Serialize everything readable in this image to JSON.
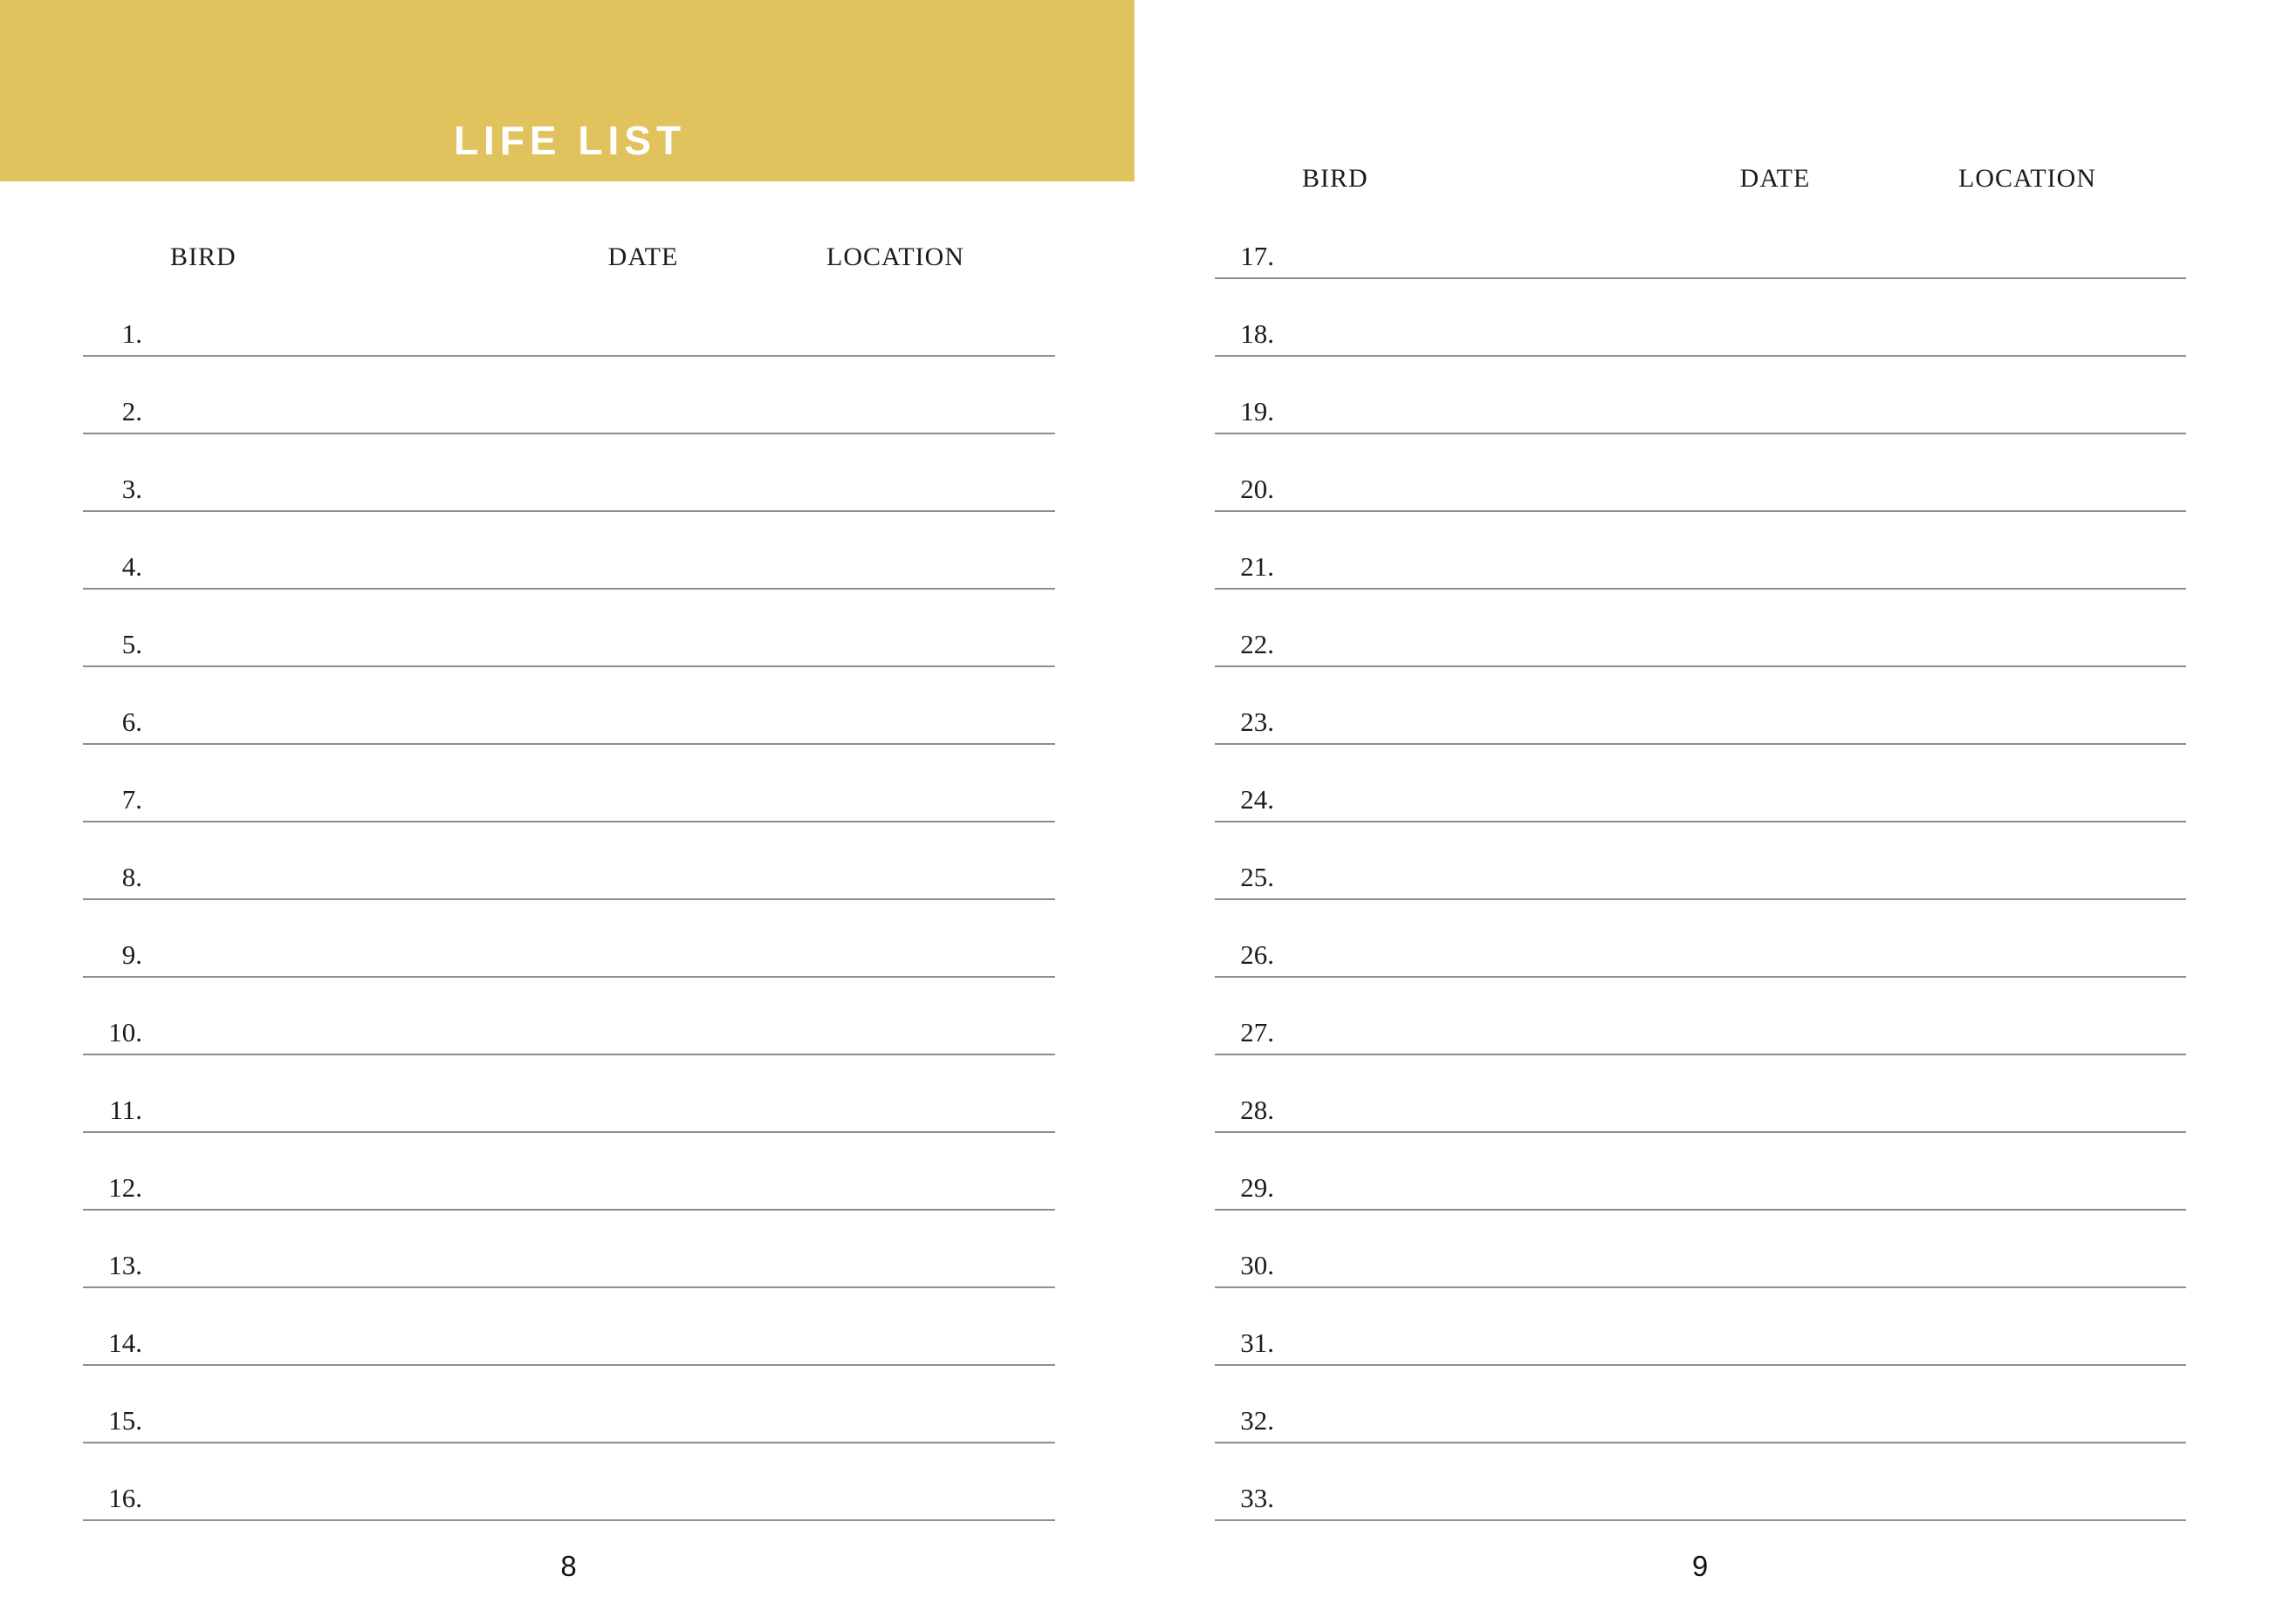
{
  "banner": {
    "title": "LIFE LIST",
    "background_color": "#E0C35D",
    "text_color": "#FFFFFF"
  },
  "columns": {
    "bird": "BIRD",
    "date": "DATE",
    "location": "LOCATION"
  },
  "rule_color": "#8E8E8E",
  "left_page": {
    "page_number": "8",
    "rows": [
      "1.",
      "2.",
      "3.",
      "4.",
      "5.",
      "6.",
      "7.",
      "8.",
      "9.",
      "10.",
      "11.",
      "12.",
      "13.",
      "14.",
      "15.",
      "16."
    ]
  },
  "right_page": {
    "page_number": "9",
    "rows": [
      "17.",
      "18.",
      "19.",
      "20.",
      "21.",
      "22.",
      "23.",
      "24.",
      "25.",
      "26.",
      "27.",
      "28.",
      "29.",
      "30.",
      "31.",
      "32.",
      "33."
    ]
  }
}
